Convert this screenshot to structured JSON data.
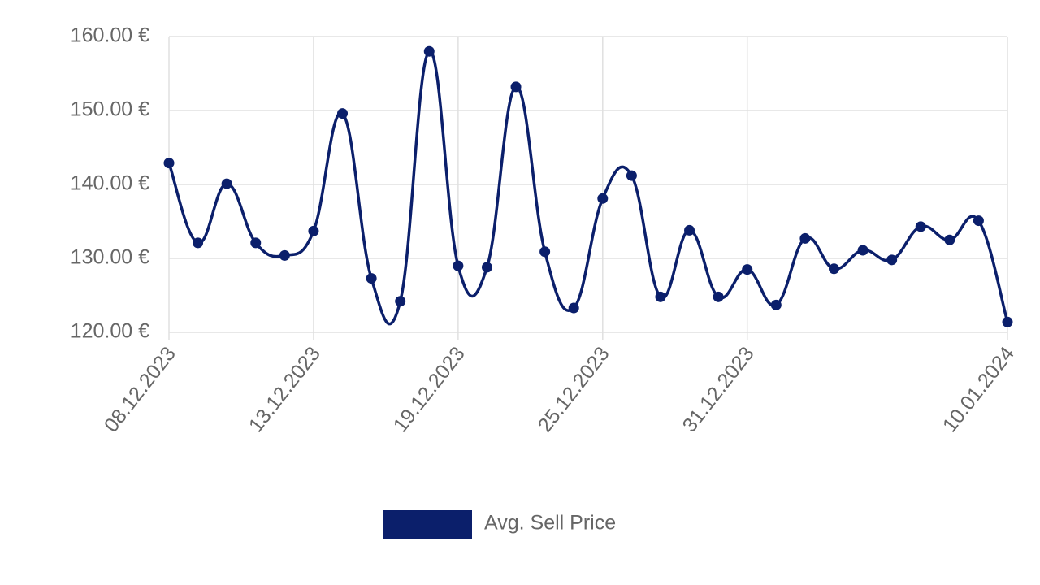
{
  "chart_data": {
    "type": "line",
    "categories": [
      "08.12.2023",
      null,
      null,
      null,
      null,
      "13.12.2023",
      null,
      null,
      null,
      null,
      "19.12.2023",
      null,
      null,
      null,
      null,
      "25.12.2023",
      null,
      null,
      null,
      null,
      "31.12.2023",
      null,
      null,
      null,
      null,
      null,
      null,
      null,
      null,
      "10.01.2024"
    ],
    "series": [
      {
        "name": "Avg. Sell Price",
        "color": "#0b1f6b",
        "values": [
          142.9,
          132.1,
          140.1,
          132.1,
          130.4,
          133.7,
          149.6,
          127.3,
          124.2,
          158.0,
          129.0,
          128.8,
          153.2,
          130.9,
          123.3,
          138.1,
          141.2,
          124.8,
          133.8,
          124.8,
          128.5,
          123.7,
          132.7,
          128.6,
          131.1,
          129.8,
          134.3,
          132.5,
          135.1,
          121.4
        ]
      }
    ],
    "ylim": [
      120,
      160
    ],
    "yticks": [
      {
        "value": 120,
        "label": "120.00 €"
      },
      {
        "value": 130,
        "label": "130.00 €"
      },
      {
        "value": 140,
        "label": "140.00 €"
      },
      {
        "value": 150,
        "label": "150.00 €"
      },
      {
        "value": 160,
        "label": "160.00 €"
      }
    ],
    "grid": true
  }
}
